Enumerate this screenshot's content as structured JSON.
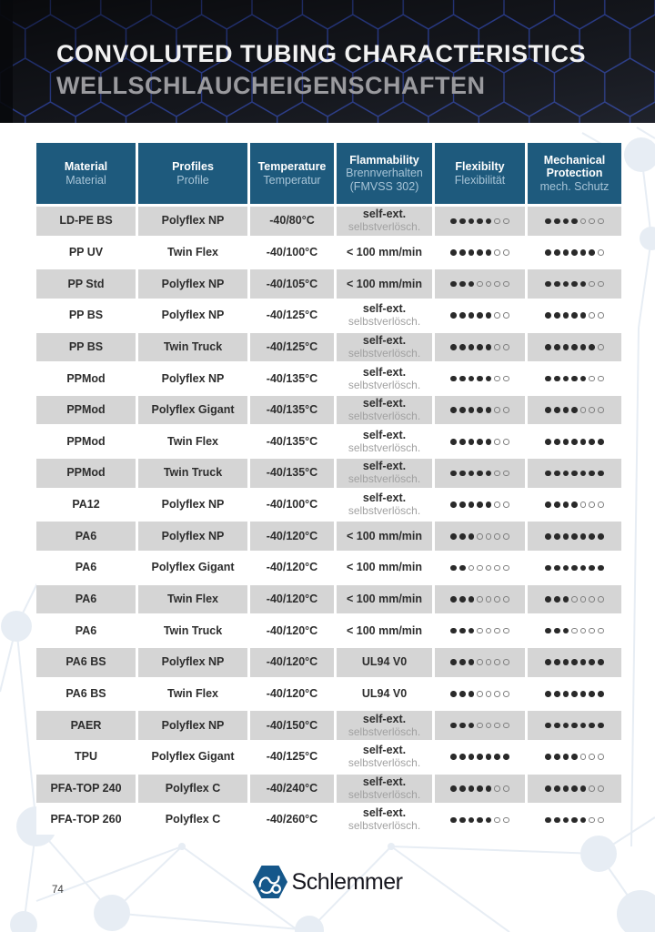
{
  "banner": {
    "title_en": "CONVOLUTED TUBING CHARACTERISTICS",
    "title_de": "WELLSCHLAUCHEIGENSCHAFTEN"
  },
  "table": {
    "columns": [
      {
        "en": "Material",
        "de": "Material"
      },
      {
        "en": "Profiles",
        "de": "Profile"
      },
      {
        "en": "Temperature",
        "de": "Temperatur"
      },
      {
        "en": "Flammability",
        "de": "Brennverhalten",
        "de2": "(FMVSS 302)"
      },
      {
        "en": "Flexibilty",
        "de": "Flexibilität"
      },
      {
        "en": "Mechanical Protection",
        "de": "mech. Schutz"
      }
    ],
    "rating_max": 7,
    "rows": [
      {
        "material": "LD-PE BS",
        "profile": "Polyflex NP",
        "temperature": "-40/80°C",
        "flammability": {
          "en": "self-ext.",
          "de": "selbstverlösch."
        },
        "flexibility": 5,
        "mechanical": 4
      },
      {
        "material": "PP UV",
        "profile": "Twin Flex",
        "temperature": "-40/100°C",
        "flammability": {
          "en": "< 100 mm/min"
        },
        "flexibility": 5,
        "mechanical": 6
      },
      {
        "material": "PP Std",
        "profile": "Polyflex NP",
        "temperature": "-40/105°C",
        "flammability": {
          "en": "< 100 mm/min"
        },
        "flexibility": 3,
        "mechanical": 5
      },
      {
        "material": "PP BS",
        "profile": "Polyflex NP",
        "temperature": "-40/125°C",
        "flammability": {
          "en": "self-ext.",
          "de": "selbstverlösch."
        },
        "flexibility": 5,
        "mechanical": 5
      },
      {
        "material": "PP BS",
        "profile": "Twin Truck",
        "temperature": "-40/125°C",
        "flammability": {
          "en": "self-ext.",
          "de": "selbstverlösch."
        },
        "flexibility": 5,
        "mechanical": 6
      },
      {
        "material": "PPMod",
        "profile": "Polyflex NP",
        "temperature": "-40/135°C",
        "flammability": {
          "en": "self-ext.",
          "de": "selbstverlösch."
        },
        "flexibility": 5,
        "mechanical": 5
      },
      {
        "material": "PPMod",
        "profile": "Polyflex Gigant",
        "temperature": "-40/135°C",
        "flammability": {
          "en": "self-ext.",
          "de": "selbstverlösch."
        },
        "flexibility": 5,
        "mechanical": 4
      },
      {
        "material": "PPMod",
        "profile": "Twin Flex",
        "temperature": "-40/135°C",
        "flammability": {
          "en": "self-ext.",
          "de": "selbstverlösch."
        },
        "flexibility": 5,
        "mechanical": 7
      },
      {
        "material": "PPMod",
        "profile": "Twin Truck",
        "temperature": "-40/135°C",
        "flammability": {
          "en": "self-ext.",
          "de": "selbstverlösch."
        },
        "flexibility": 5,
        "mechanical": 7
      },
      {
        "material": "PA12",
        "profile": "Polyflex NP",
        "temperature": "-40/100°C",
        "flammability": {
          "en": "self-ext.",
          "de": "selbstverlösch."
        },
        "flexibility": 5,
        "mechanical": 4
      },
      {
        "material": "PA6",
        "profile": "Polyflex NP",
        "temperature": "-40/120°C",
        "flammability": {
          "en": "< 100 mm/min"
        },
        "flexibility": 3,
        "mechanical": 7
      },
      {
        "material": "PA6",
        "profile": "Polyflex Gigant",
        "temperature": "-40/120°C",
        "flammability": {
          "en": "< 100 mm/min"
        },
        "flexibility": 2,
        "mechanical": 7
      },
      {
        "material": "PA6",
        "profile": "Twin Flex",
        "temperature": "-40/120°C",
        "flammability": {
          "en": "< 100 mm/min"
        },
        "flexibility": 3,
        "mechanical": 3
      },
      {
        "material": "PA6",
        "profile": "Twin Truck",
        "temperature": "-40/120°C",
        "flammability": {
          "en": "< 100 mm/min"
        },
        "flexibility": 3,
        "mechanical": 3
      },
      {
        "material": "PA6 BS",
        "profile": "Polyflex NP",
        "temperature": "-40/120°C",
        "flammability": {
          "en": "UL94 V0"
        },
        "flexibility": 3,
        "mechanical": 7
      },
      {
        "material": "PA6 BS",
        "profile": "Twin Flex",
        "temperature": "-40/120°C",
        "flammability": {
          "en": "UL94 V0"
        },
        "flexibility": 3,
        "mechanical": 7
      },
      {
        "material": "PAER",
        "profile": "Polyflex NP",
        "temperature": "-40/150°C",
        "flammability": {
          "en": "self-ext.",
          "de": "selbstverlösch."
        },
        "flexibility": 3,
        "mechanical": 7
      },
      {
        "material": "TPU",
        "profile": "Polyflex Gigant",
        "temperature": "-40/125°C",
        "flammability": {
          "en": "self-ext.",
          "de": "selbstverlösch."
        },
        "flexibility": 7,
        "mechanical": 4
      },
      {
        "material": "PFA-TOP 240",
        "profile": "Polyflex C",
        "temperature": "-40/240°C",
        "flammability": {
          "en": "self-ext.",
          "de": "selbstverlösch."
        },
        "flexibility": 5,
        "mechanical": 5
      },
      {
        "material": "PFA-TOP 260",
        "profile": "Polyflex C",
        "temperature": "-40/260°C",
        "flammability": {
          "en": "self-ext.",
          "de": "selbstverlösch."
        },
        "flexibility": 5,
        "mechanical": 5
      }
    ]
  },
  "footer": {
    "page_number": "74",
    "logo_text": "Schlemmer"
  },
  "colors": {
    "header_blue": "#1e5a7d",
    "header_subtext": "#a7c4d7",
    "row_gray": "#d5d5d5",
    "banner_bg": "#14161c",
    "banner_hex_stroke": "#2c3f92",
    "logo_blue": "#15578a",
    "dot_dark": "#2a2a2a"
  }
}
